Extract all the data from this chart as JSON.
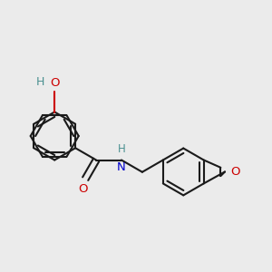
{
  "bg_color": "#ebebeb",
  "bond_color": "#1a1a1a",
  "oxygen_color": "#cc0000",
  "nitrogen_color": "#0000cc",
  "hydrogen_color": "#4a9090",
  "bond_width": 1.5,
  "figsize": [
    3.0,
    3.0
  ],
  "dpi": 100,
  "xlim": [
    0,
    1
  ],
  "ylim": [
    0,
    1
  ]
}
